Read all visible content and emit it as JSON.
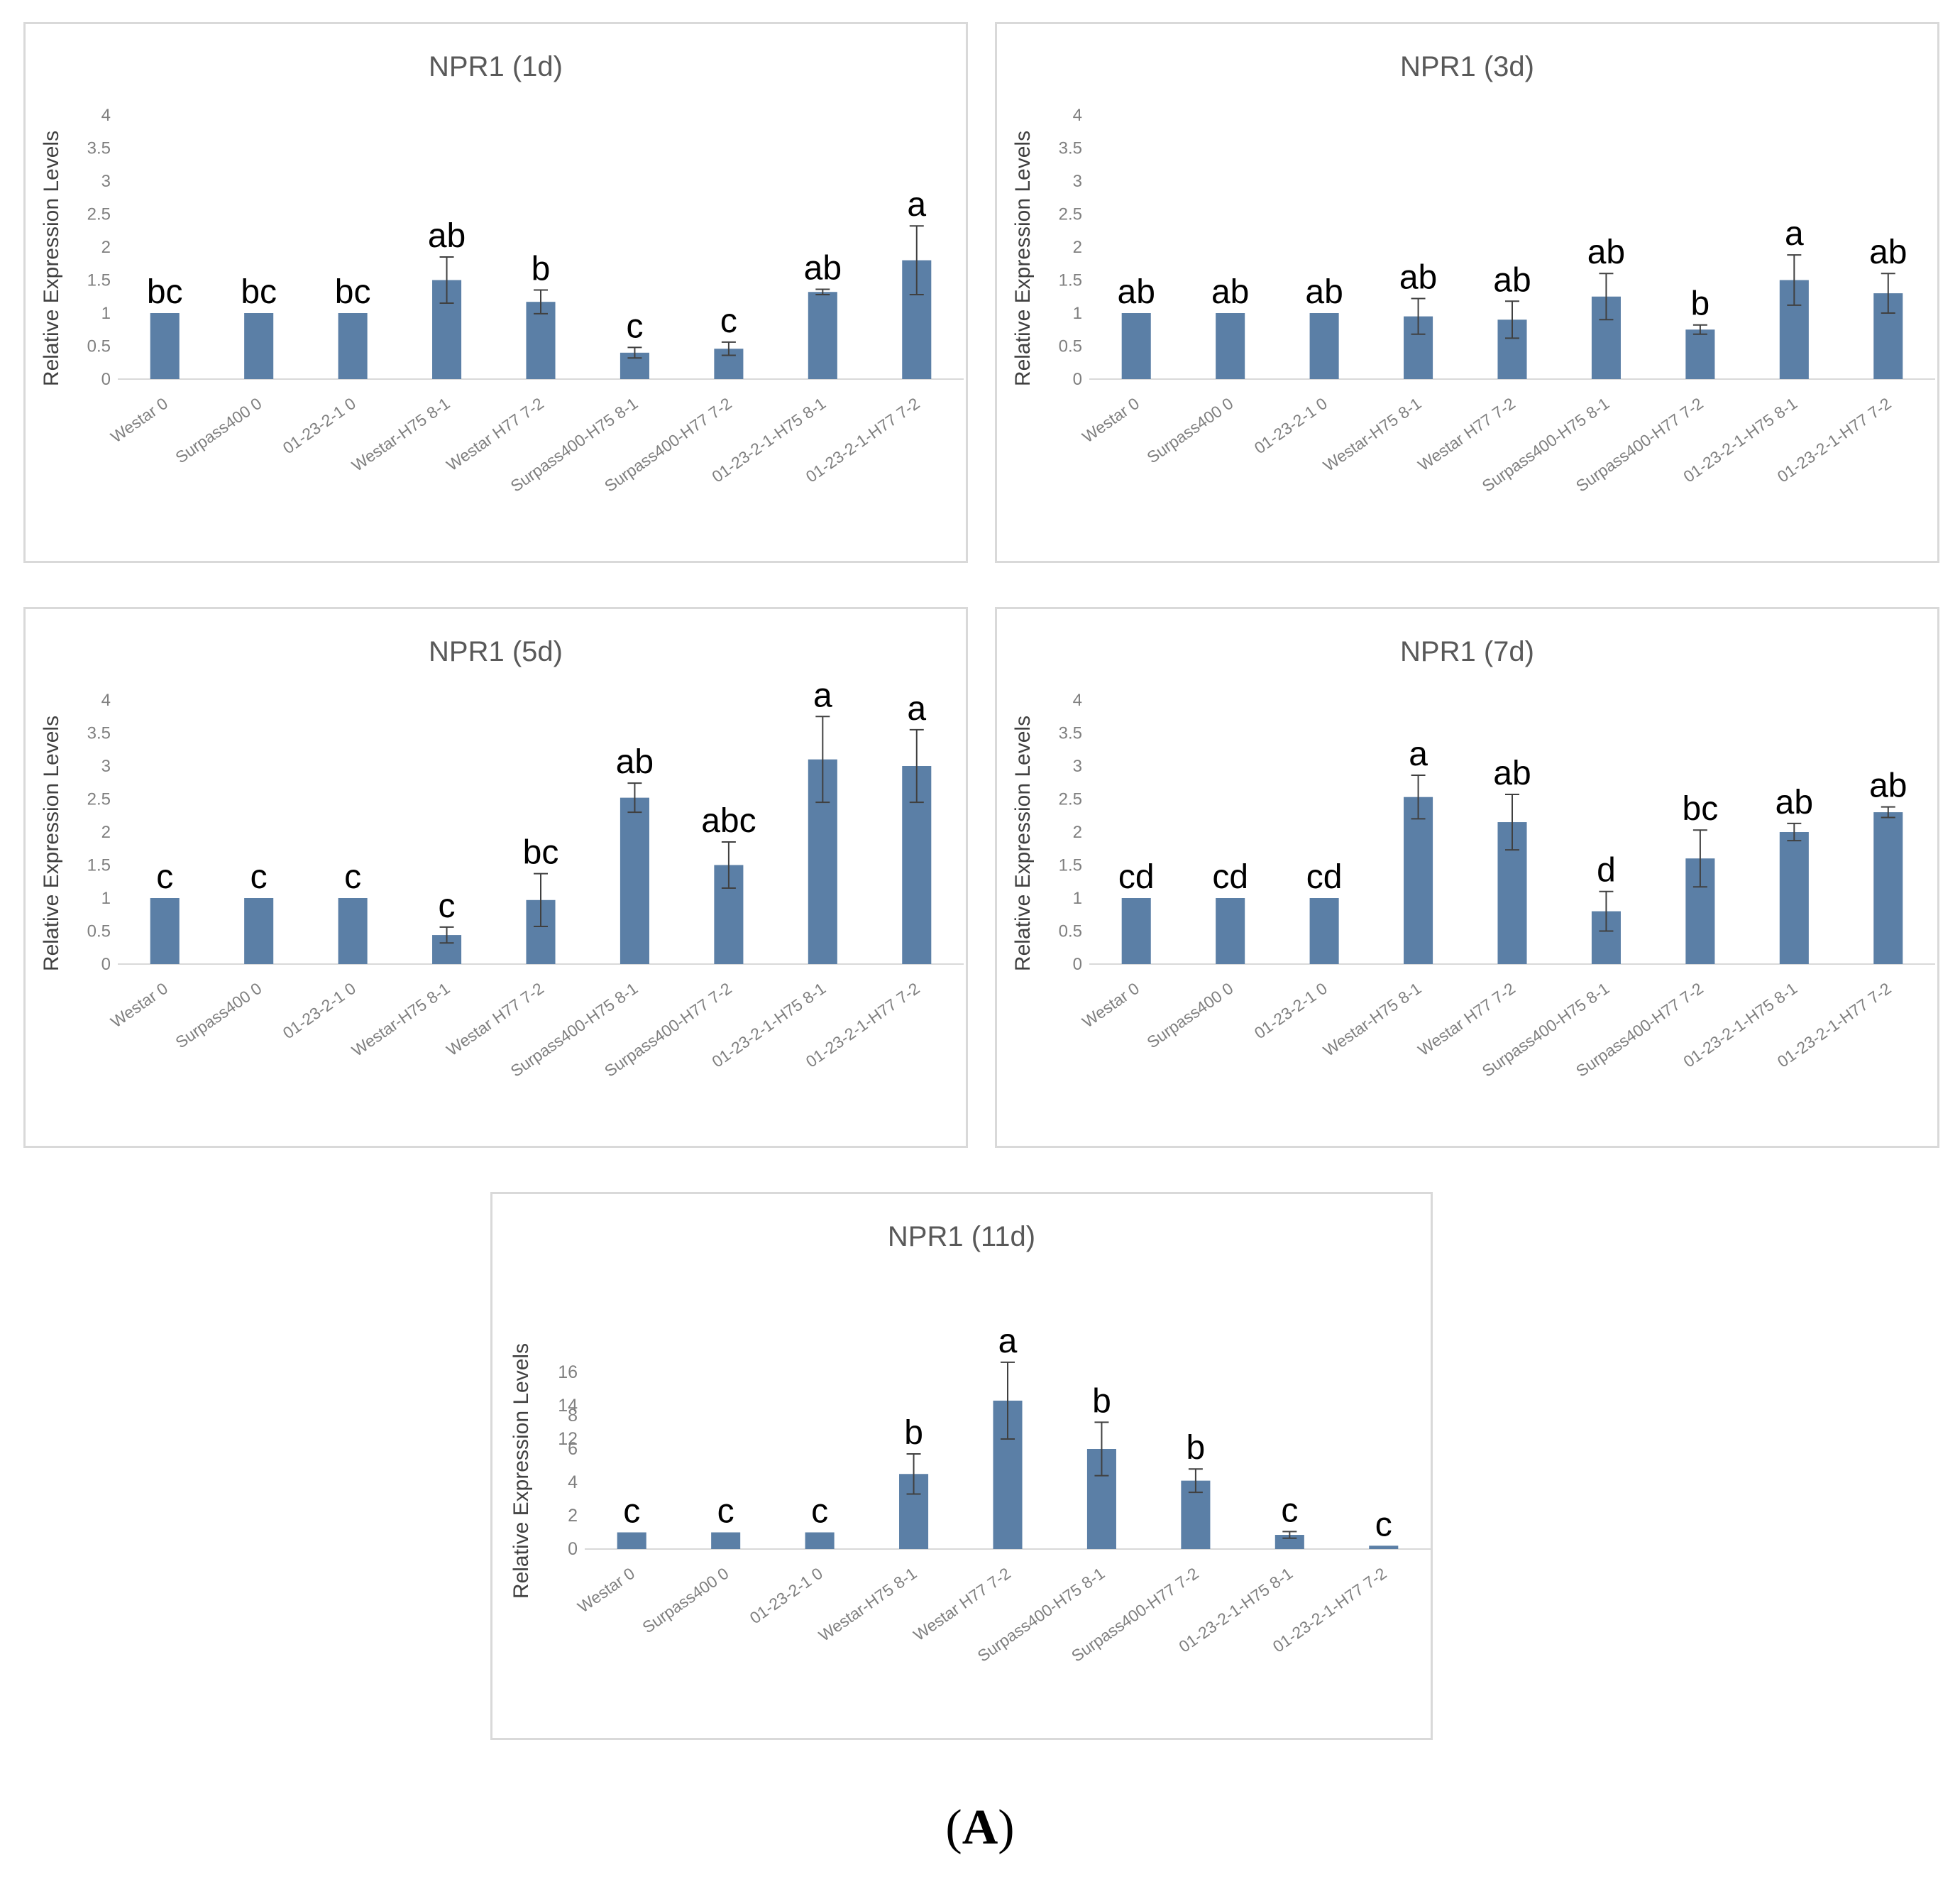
{
  "figure": {
    "caption_open": "(",
    "caption_letter": "A",
    "caption_close": ")"
  },
  "colors": {
    "bar": "#5b7fa6",
    "axis_text": "#7f7f7f",
    "title": "#595959",
    "letters": "#000000",
    "error": "#404040"
  },
  "chart_data": [
    {
      "type": "bar",
      "title": "NPR1 (1d)",
      "ylabel": "Relative Expression Levels",
      "xlabel": "",
      "ylim": [
        0,
        4
      ],
      "yticks": [
        "0",
        "0.5",
        "1",
        "1.5",
        "2",
        "2.5",
        "3",
        "3.5",
        "4"
      ],
      "categories": [
        "Westar 0",
        "Surpass400 0",
        "01-23-2-1 0",
        "Westar-H75 8-1",
        "Westar H77 7-2",
        "Surpass400-H75 8-1",
        "Surpass400-H77 7-2",
        "01-23-2-1-H75 8-1",
        "01-23-2-1-H77 7-2"
      ],
      "values": [
        1.0,
        1.0,
        1.0,
        1.5,
        1.17,
        0.4,
        0.46,
        1.32,
        1.8
      ],
      "errors": [
        0.0,
        0.0,
        0.0,
        0.35,
        0.18,
        0.08,
        0.1,
        0.04,
        0.52
      ],
      "significance": [
        "bc",
        "bc",
        "bc",
        "ab",
        "b",
        "c",
        "c",
        "ab",
        "a"
      ]
    },
    {
      "type": "bar",
      "title": "NPR1 (3d)",
      "ylabel": "Relative Expression Levels",
      "xlabel": "",
      "ylim": [
        0,
        4
      ],
      "yticks": [
        "0",
        "0.5",
        "1",
        "1.5",
        "2",
        "2.5",
        "3",
        "3.5",
        "4"
      ],
      "categories": [
        "Westar 0",
        "Surpass400 0",
        "01-23-2-1 0",
        "Westar-H75 8-1",
        "Westar H77 7-2",
        "Surpass400-H75 8-1",
        "Surpass400-H77 7-2",
        "01-23-2-1-H75 8-1",
        "01-23-2-1-H77 7-2"
      ],
      "values": [
        1.0,
        1.0,
        1.0,
        0.95,
        0.9,
        1.25,
        0.75,
        1.5,
        1.3
      ],
      "errors": [
        0.0,
        0.0,
        0.0,
        0.27,
        0.28,
        0.35,
        0.07,
        0.38,
        0.3
      ],
      "significance": [
        "ab",
        "ab",
        "ab",
        "ab",
        "ab",
        "ab",
        "b",
        "a",
        "ab"
      ]
    },
    {
      "type": "bar",
      "title": "NPR1 (5d)",
      "ylabel": "Relative Expression Levels",
      "xlabel": "",
      "ylim": [
        0,
        4
      ],
      "yticks": [
        "0",
        "0.5",
        "1",
        "1.5",
        "2",
        "2.5",
        "3",
        "3.5",
        "4"
      ],
      "categories": [
        "Westar 0",
        "Surpass400 0",
        "01-23-2-1 0",
        "Westar-H75 8-1",
        "Westar H77 7-2",
        "Surpass400-H75 8-1",
        "Surpass400-H77 7-2",
        "01-23-2-1-H75 8-1",
        "01-23-2-1-H77 7-2"
      ],
      "values": [
        1.0,
        1.0,
        1.0,
        0.44,
        0.97,
        2.52,
        1.5,
        3.1,
        3.0
      ],
      "errors": [
        0.0,
        0.0,
        0.0,
        0.12,
        0.4,
        0.22,
        0.35,
        0.65,
        0.55
      ],
      "significance": [
        "c",
        "c",
        "c",
        "c",
        "bc",
        "ab",
        "abc",
        "a",
        "a"
      ]
    },
    {
      "type": "bar",
      "title": "NPR1 (7d)",
      "ylabel": "Relative Expression Levels",
      "xlabel": "",
      "ylim": [
        0,
        4
      ],
      "yticks": [
        "0",
        "0.5",
        "1",
        "1.5",
        "2",
        "2.5",
        "3",
        "3.5",
        "4"
      ],
      "categories": [
        "Westar 0",
        "Surpass400 0",
        "01-23-2-1 0",
        "Westar-H75 8-1",
        "Westar H77 7-2",
        "Surpass400-H75 8-1",
        "Surpass400-H77 7-2",
        "01-23-2-1-H75 8-1",
        "01-23-2-1-H77 7-2"
      ],
      "values": [
        1.0,
        1.0,
        1.0,
        2.53,
        2.15,
        0.8,
        1.6,
        2.0,
        2.3
      ],
      "errors": [
        0.0,
        0.0,
        0.0,
        0.33,
        0.42,
        0.3,
        0.43,
        0.13,
        0.08
      ],
      "significance": [
        "cd",
        "cd",
        "cd",
        "a",
        "ab",
        "d",
        "bc",
        "ab",
        "ab"
      ]
    },
    {
      "type": "bar",
      "title": "NPR1 (11d)",
      "ylabel": "Relative Expression Levels",
      "xlabel": "",
      "axis_break": {
        "from": 8,
        "to": 12
      },
      "ylim": [
        0,
        16
      ],
      "yticks": [
        "0",
        "2",
        "4",
        "6",
        "8",
        "12",
        "14",
        "16"
      ],
      "categories": [
        "Westar 0",
        "Surpass400 0",
        "01-23-2-1 0",
        "Westar-H75 8-1",
        "Westar H77 7-2",
        "Surpass400-H75 8-1",
        "Surpass400-H77 7-2",
        "01-23-2-1-H75 8-1",
        "01-23-2-1-H77 7-2"
      ],
      "values": [
        1.0,
        1.0,
        1.0,
        4.5,
        14.3,
        6.0,
        4.1,
        0.85,
        0.2
      ],
      "errors": [
        0.0,
        0.0,
        0.0,
        1.2,
        2.3,
        1.6,
        0.7,
        0.2,
        0.0
      ],
      "significance": [
        "c",
        "c",
        "c",
        "b",
        "a",
        "b",
        "b",
        "c",
        "c"
      ]
    }
  ]
}
